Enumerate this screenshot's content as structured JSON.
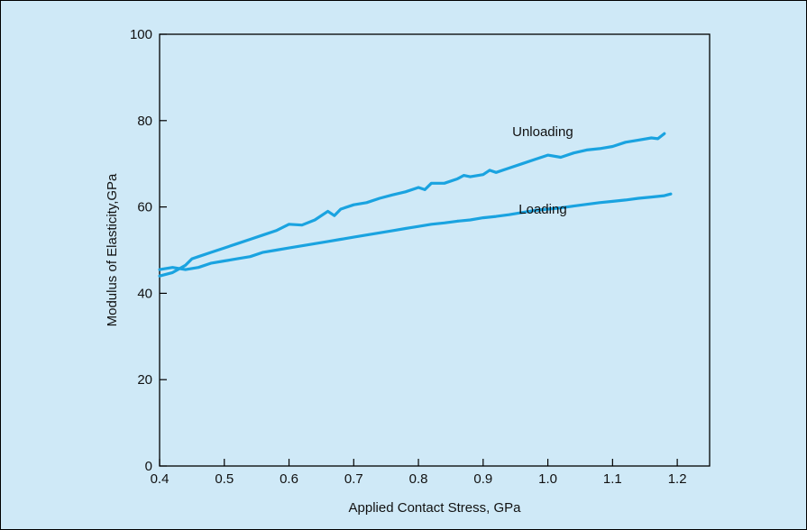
{
  "chart_data": {
    "type": "line",
    "title": "",
    "xlabel": "Applied Contact Stress, GPa",
    "ylabel": "Modulus of Elasticity,GPa",
    "xlim": [
      0.4,
      1.25
    ],
    "ylim": [
      0,
      100
    ],
    "x_ticks": [
      0.4,
      0.5,
      0.6,
      0.7,
      0.8,
      0.9,
      1.0,
      1.1,
      1.2
    ],
    "x_tick_labels": [
      "0.4",
      "0.5",
      "0.6",
      "0.7",
      "0.8",
      "0.9",
      "1.0",
      "1.1",
      "1.2"
    ],
    "y_ticks": [
      0,
      20,
      40,
      60,
      80,
      100
    ],
    "y_tick_labels": [
      "0",
      "20",
      "40",
      "60",
      "80",
      "100"
    ],
    "grid": false,
    "legend": "none",
    "line_color": "#1aa3e0",
    "series": [
      {
        "name": "Unloading",
        "x": [
          0.4,
          0.42,
          0.44,
          0.45,
          0.46,
          0.48,
          0.5,
          0.52,
          0.54,
          0.56,
          0.58,
          0.6,
          0.62,
          0.64,
          0.66,
          0.67,
          0.68,
          0.7,
          0.72,
          0.74,
          0.76,
          0.78,
          0.8,
          0.81,
          0.82,
          0.84,
          0.86,
          0.87,
          0.88,
          0.9,
          0.91,
          0.92,
          0.94,
          0.96,
          0.98,
          1.0,
          1.02,
          1.04,
          1.06,
          1.08,
          1.1,
          1.12,
          1.14,
          1.16,
          1.17,
          1.18
        ],
        "y": [
          44.0,
          44.8,
          46.5,
          48.0,
          48.5,
          49.5,
          50.5,
          51.5,
          52.5,
          53.5,
          54.5,
          56.0,
          55.8,
          57.0,
          59.0,
          58.0,
          59.5,
          60.5,
          61.0,
          62.0,
          62.8,
          63.5,
          64.5,
          64.0,
          65.5,
          65.5,
          66.5,
          67.3,
          67.0,
          67.5,
          68.5,
          68.0,
          69.0,
          70.0,
          71.0,
          72.0,
          71.5,
          72.5,
          73.2,
          73.5,
          74.0,
          75.0,
          75.5,
          76.0,
          75.8,
          77.0
        ]
      },
      {
        "name": "Loading",
        "x": [
          0.4,
          0.42,
          0.44,
          0.46,
          0.48,
          0.5,
          0.52,
          0.54,
          0.56,
          0.58,
          0.6,
          0.62,
          0.64,
          0.66,
          0.68,
          0.7,
          0.72,
          0.74,
          0.76,
          0.78,
          0.8,
          0.82,
          0.84,
          0.86,
          0.88,
          0.9,
          0.92,
          0.94,
          0.96,
          0.98,
          1.0,
          1.02,
          1.04,
          1.06,
          1.08,
          1.1,
          1.12,
          1.14,
          1.16,
          1.18,
          1.19
        ],
        "y": [
          45.5,
          46.0,
          45.5,
          46.0,
          47.0,
          47.5,
          48.0,
          48.5,
          49.5,
          50.0,
          50.5,
          51.0,
          51.5,
          52.0,
          52.5,
          53.0,
          53.5,
          54.0,
          54.5,
          55.0,
          55.5,
          56.0,
          56.3,
          56.7,
          57.0,
          57.5,
          57.8,
          58.2,
          58.7,
          59.2,
          59.5,
          59.8,
          60.2,
          60.6,
          61.0,
          61.3,
          61.6,
          62.0,
          62.3,
          62.6,
          63.0
        ]
      }
    ],
    "annotations": [
      {
        "text": "Unloading",
        "x": 0.945,
        "y": 77.5
      },
      {
        "text": "Loading",
        "x": 0.955,
        "y": 59.5
      }
    ]
  }
}
